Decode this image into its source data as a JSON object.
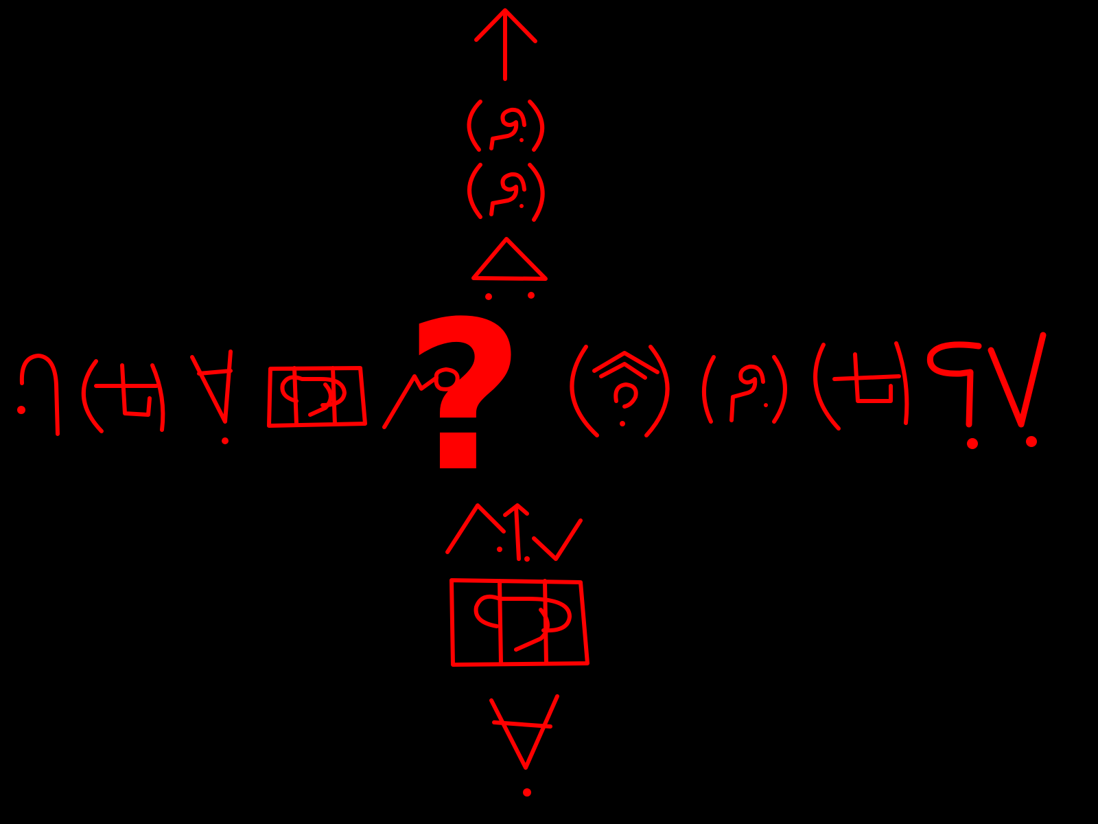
{
  "drawing": {
    "background_color": "#000000",
    "stroke_color": "#ff0000",
    "center_symbol": "?"
  }
}
